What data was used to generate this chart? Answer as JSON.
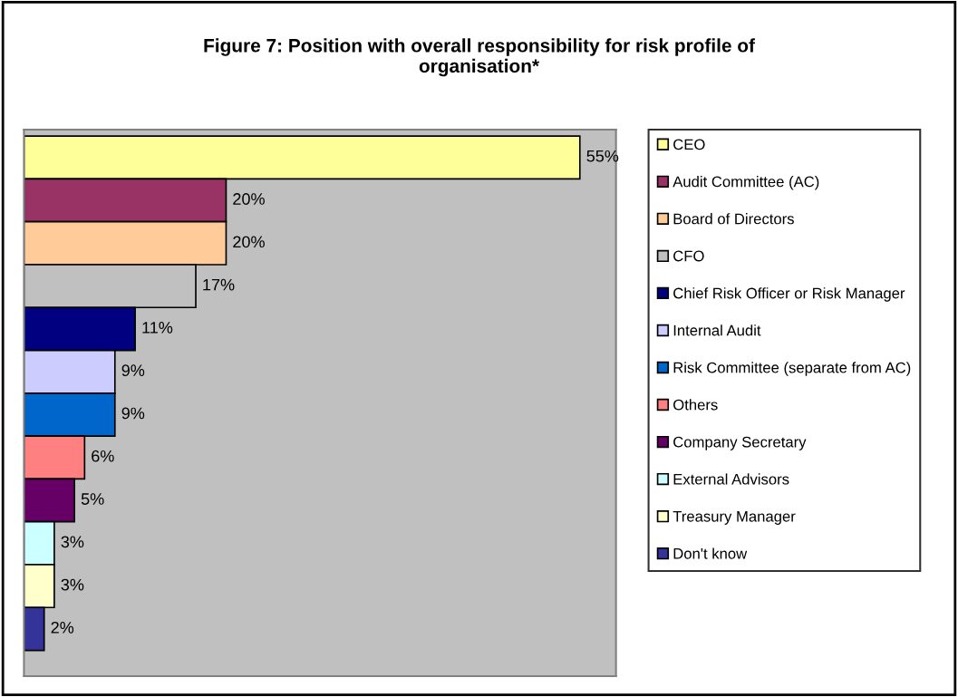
{
  "chart_data": {
    "type": "bar",
    "orientation": "horizontal",
    "stacked": true,
    "title": "Figure 7: Position with overall responsibility for risk profile of\norganisation*",
    "categories": [
      null,
      null,
      null,
      null,
      null,
      null,
      null,
      null,
      null,
      null,
      null,
      null
    ],
    "series": [
      {
        "name": "CEO",
        "color": "#ffff99",
        "values": [
          55,
          null,
          null,
          null,
          null,
          null,
          null,
          null,
          null,
          null,
          null,
          null
        ],
        "value_labels": [
          "55%",
          null,
          null,
          null,
          null,
          null,
          null,
          null,
          null,
          null,
          null,
          null
        ]
      },
      {
        "name": "Audit Committee (AC)",
        "color": "#993366",
        "values": [
          null,
          20,
          null,
          null,
          null,
          null,
          null,
          null,
          null,
          null,
          null,
          null
        ],
        "value_labels": [
          null,
          "20%",
          null,
          null,
          null,
          null,
          null,
          null,
          null,
          null,
          null,
          null
        ]
      },
      {
        "name": "Board of Directors",
        "color": "#ffcc99",
        "values": [
          null,
          null,
          20,
          null,
          null,
          null,
          null,
          null,
          null,
          null,
          null,
          null
        ],
        "value_labels": [
          null,
          null,
          "20%",
          null,
          null,
          null,
          null,
          null,
          null,
          null,
          null,
          null
        ]
      },
      {
        "name": "CFO",
        "color": "#c0c0c0",
        "values": [
          null,
          null,
          null,
          17,
          null,
          null,
          null,
          null,
          null,
          null,
          null,
          null
        ],
        "value_labels": [
          null,
          null,
          null,
          "17%",
          null,
          null,
          null,
          null,
          null,
          null,
          null,
          null
        ]
      },
      {
        "name": "Chief Risk Officer or Risk Manager",
        "color": "#000080",
        "values": [
          null,
          null,
          null,
          null,
          11,
          null,
          null,
          null,
          null,
          null,
          null,
          null
        ],
        "value_labels": [
          null,
          null,
          null,
          null,
          "11%",
          null,
          null,
          null,
          null,
          null,
          null,
          null
        ]
      },
      {
        "name": "Internal Audit",
        "color": "#ccccff",
        "values": [
          null,
          null,
          null,
          null,
          null,
          9,
          null,
          null,
          null,
          null,
          null,
          null
        ],
        "value_labels": [
          null,
          null,
          null,
          null,
          null,
          "9%",
          null,
          null,
          null,
          null,
          null,
          null
        ]
      },
      {
        "name": "Risk Committee (separate from AC)",
        "color": "#0066cc",
        "values": [
          null,
          null,
          null,
          null,
          null,
          null,
          9,
          null,
          null,
          null,
          null,
          null
        ],
        "value_labels": [
          null,
          null,
          null,
          null,
          null,
          null,
          "9%",
          null,
          null,
          null,
          null,
          null
        ]
      },
      {
        "name": "Others",
        "color": "#ff8080",
        "values": [
          null,
          null,
          null,
          null,
          null,
          null,
          null,
          6,
          null,
          null,
          null,
          null
        ],
        "value_labels": [
          null,
          null,
          null,
          null,
          null,
          null,
          null,
          "6%",
          null,
          null,
          null,
          null
        ]
      },
      {
        "name": "Company Secretary",
        "color": "#660066",
        "values": [
          null,
          null,
          null,
          null,
          null,
          null,
          null,
          null,
          5,
          null,
          null,
          null
        ],
        "value_labels": [
          null,
          null,
          null,
          null,
          null,
          null,
          null,
          null,
          "5%",
          null,
          null,
          null
        ]
      },
      {
        "name": "External Advisors",
        "color": "#ccffff",
        "values": [
          null,
          null,
          null,
          null,
          null,
          null,
          null,
          null,
          null,
          3,
          null,
          null
        ],
        "value_labels": [
          null,
          null,
          null,
          null,
          null,
          null,
          null,
          null,
          null,
          "3%",
          null,
          null
        ]
      },
      {
        "name": "Treasury Manager",
        "color": "#ffffcc",
        "values": [
          null,
          null,
          null,
          null,
          null,
          null,
          null,
          null,
          null,
          null,
          3,
          null
        ],
        "value_labels": [
          null,
          null,
          null,
          null,
          null,
          null,
          null,
          null,
          null,
          null,
          "3%",
          null
        ]
      },
      {
        "name": "Don't know",
        "color": "#333399",
        "values": [
          null,
          null,
          null,
          null,
          null,
          null,
          null,
          null,
          null,
          null,
          null,
          2
        ],
        "value_labels": [
          null,
          null,
          null,
          null,
          null,
          null,
          null,
          null,
          null,
          null,
          null,
          "2%"
        ]
      }
    ],
    "legend": "right",
    "tick_labels": false
  }
}
